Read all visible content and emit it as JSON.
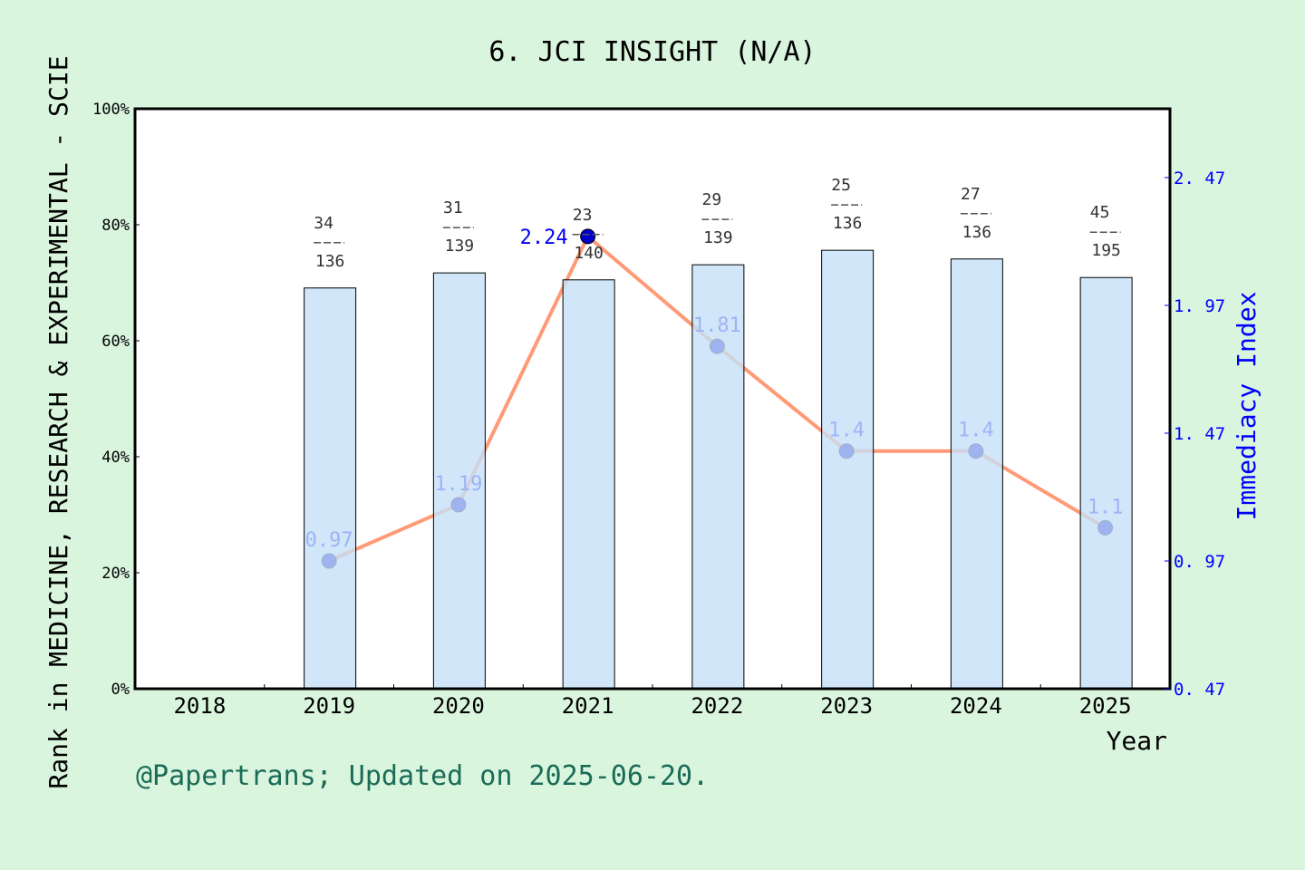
{
  "chart_data": {
    "type": "bar+line",
    "title": "6. JCI INSIGHT (N/A)",
    "xlabel": "Year",
    "ylabel_left": "Rank in MEDICINE, RESEARCH & EXPERIMENTAL - SCIE",
    "ylabel_right": "Immediacy Index",
    "categories": [
      "2018",
      "2019",
      "2020",
      "2021",
      "2022",
      "2023",
      "2024",
      "2025"
    ],
    "left_ylim": [
      0,
      100
    ],
    "left_ticks": [
      "0%",
      "20%",
      "40%",
      "60%",
      "80%",
      "100%"
    ],
    "right_ylim": [
      0.47,
      2.67
    ],
    "right_ticks": [
      "0.47",
      "0.97",
      "1.47",
      "1.97",
      "2.47"
    ],
    "bars": {
      "values_percent": [
        null,
        69.1,
        71.7,
        70.5,
        73.1,
        75.6,
        74.1,
        70.9
      ],
      "rank": [
        null,
        "34",
        "31",
        "23",
        "29",
        "25",
        "27",
        "45"
      ],
      "total": [
        null,
        "136",
        "139",
        "140",
        "139",
        "136",
        "136",
        "195"
      ],
      "color": "#c5e0f7"
    },
    "line": {
      "values": [
        null,
        0.97,
        1.19,
        2.24,
        1.81,
        1.4,
        1.4,
        1.1
      ],
      "labels": [
        null,
        "0.97",
        "1.19",
        "2.24",
        "1.81",
        "1.4",
        "1.4",
        "1.1"
      ],
      "color": "#ff9a76",
      "marker_color": "#0000cc"
    },
    "grid": false
  },
  "footer": "@Papertrans; Updated on 2025-06-20."
}
